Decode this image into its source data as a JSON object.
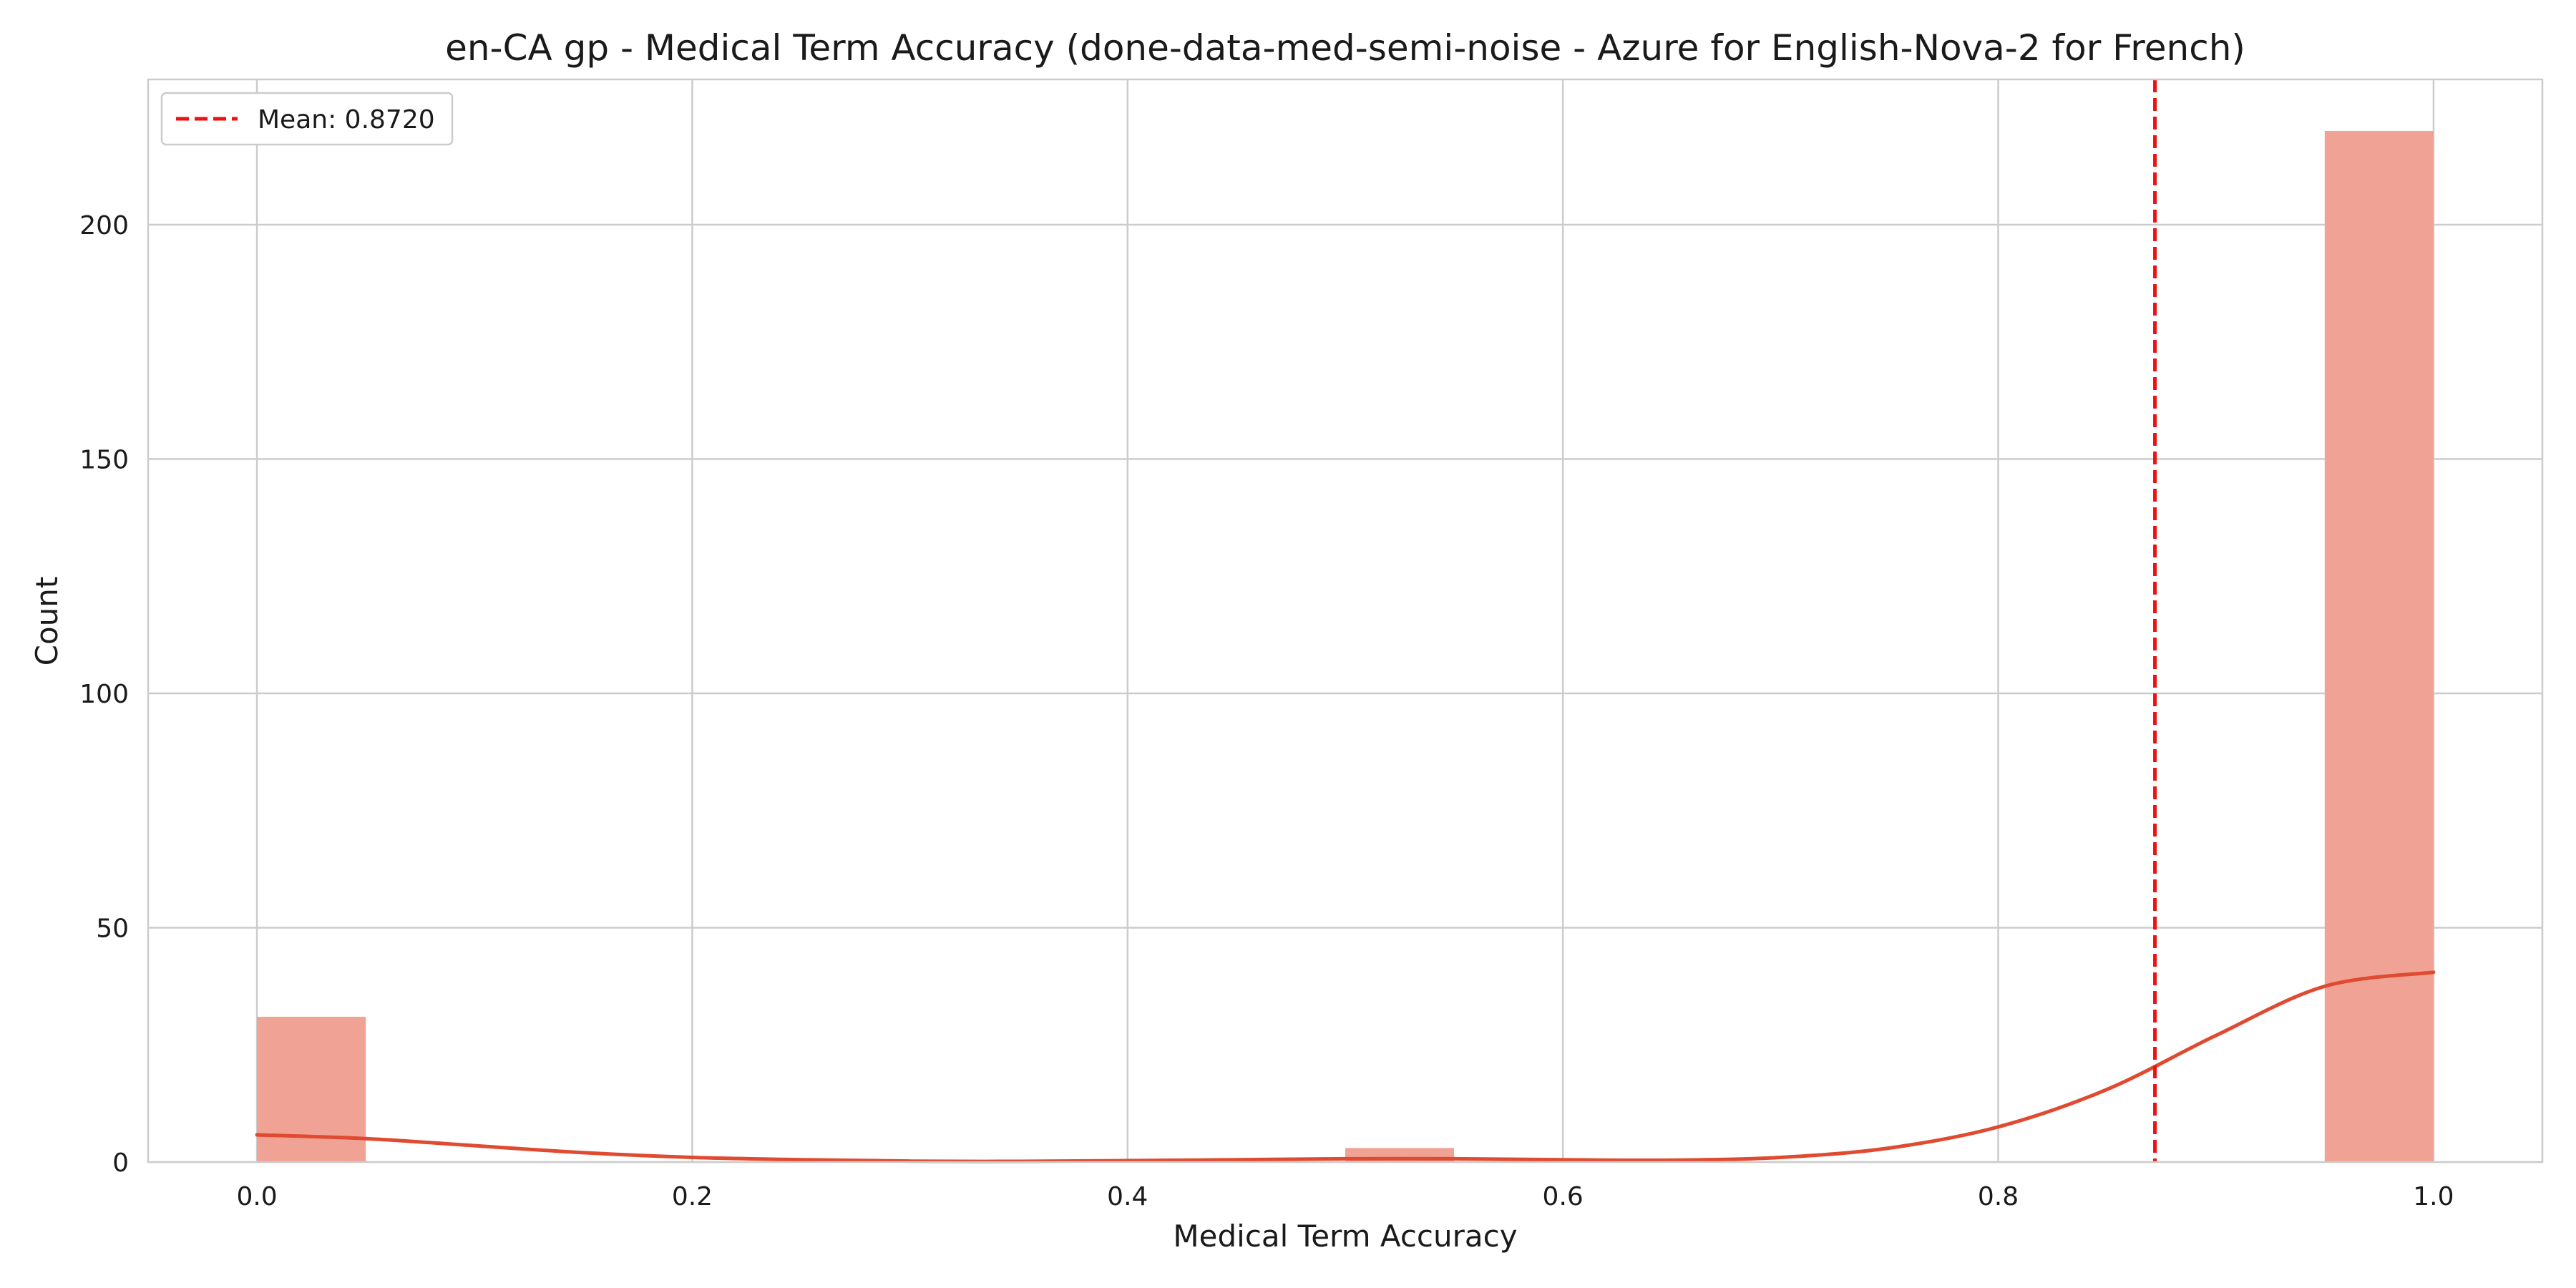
{
  "chart_data": {
    "type": "bar",
    "title": "en-CA gp - Medical Term Accuracy (done-data-med-semi-noise - Azure for English-Nova-2 for French)",
    "xlabel": "Medical Term Accuracy",
    "ylabel": "Count",
    "xlim": [
      -0.05,
      1.05
    ],
    "ylim": [
      0,
      231
    ],
    "xticks": [
      0.0,
      0.2,
      0.4,
      0.6,
      0.8,
      1.0
    ],
    "xtick_labels": [
      "0.0",
      "0.2",
      "0.4",
      "0.6",
      "0.8",
      "1.0"
    ],
    "yticks": [
      0,
      50,
      100,
      150,
      200
    ],
    "ytick_labels": [
      "0",
      "50",
      "100",
      "150",
      "200"
    ],
    "grid": true,
    "bar_color": "#f0a294",
    "bins": [
      {
        "start": 0.0,
        "end": 0.05,
        "count": 31
      },
      {
        "start": 0.5,
        "end": 0.55,
        "count": 3
      },
      {
        "start": 0.95,
        "end": 1.0,
        "count": 220
      }
    ],
    "kde": {
      "color": "#e04a30",
      "x": [
        0.0,
        0.05,
        0.1,
        0.15,
        0.2,
        0.25,
        0.3,
        0.35,
        0.4,
        0.45,
        0.5,
        0.55,
        0.6,
        0.65,
        0.7,
        0.75,
        0.8,
        0.85,
        0.9,
        0.95,
        1.0
      ],
      "y": [
        5.8,
        5.0,
        3.5,
        2.0,
        1.0,
        0.5,
        0.2,
        0.15,
        0.3,
        0.5,
        0.7,
        0.7,
        0.5,
        0.4,
        1.0,
        3.0,
        7.5,
        15.5,
        27.0,
        37.5,
        40.5
      ]
    },
    "mean_line": {
      "value": 0.872,
      "label": "Mean: 0.8720",
      "color": "#ee1111"
    },
    "legend": {
      "placement": "top-left",
      "entries": [
        "Mean: 0.8720"
      ]
    }
  }
}
